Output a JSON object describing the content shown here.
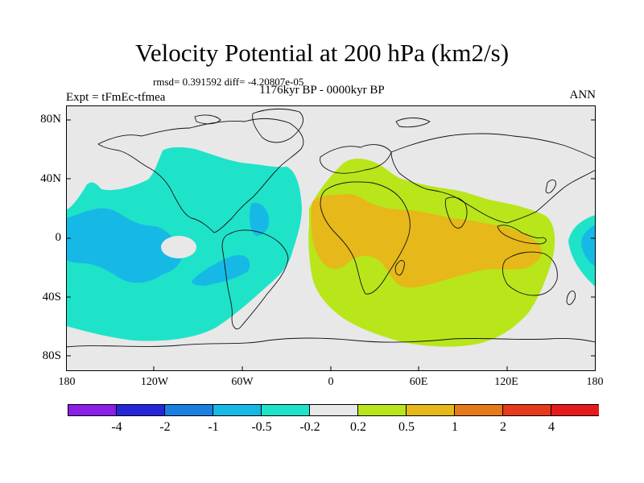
{
  "title": "Velocity Potential at 200 hPa (km2/s)",
  "stats": "rmsd= 0.391592 diff= -4.20807e-05",
  "experiment": "Expt = tFmEc-tfmea",
  "period": "1176kyr BP - 0000kyr BP",
  "season": "ANN",
  "axes": {
    "lat_ticks": [
      "80N",
      "40N",
      "0",
      "40S",
      "80S"
    ],
    "lon_ticks": [
      "180",
      "120W",
      "60W",
      "0",
      "60E",
      "120E",
      "180"
    ]
  },
  "colorbar": {
    "labels": [
      "-4",
      "-2",
      "-1",
      "-0.5",
      "-0.2",
      "0.2",
      "0.5",
      "1",
      "2",
      "4"
    ],
    "colors": [
      "#8a1fe6",
      "#2626d9",
      "#1a7fe0",
      "#16b9e6",
      "#1fe3c8",
      "#e8e8e8",
      "#b8e61a",
      "#e6b81a",
      "#e67a1a",
      "#e63a1a",
      "#e61a1a"
    ]
  },
  "colors": {
    "neutral": "#e8e8e8",
    "negative_light": "#1fe3c8",
    "negative_mid": "#16b9e6",
    "positive_light": "#b8e61a",
    "positive_mid": "#e6b81a"
  }
}
